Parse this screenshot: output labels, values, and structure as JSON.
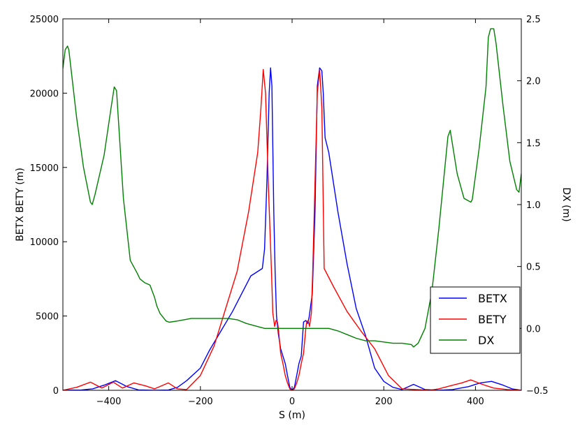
{
  "chart_data": {
    "type": "line",
    "xlabel": "S (m)",
    "ylabel": "BETX BETY (m)",
    "y2label": "DX (m)",
    "xlim": [
      -500,
      500
    ],
    "ylim": [
      0,
      25000
    ],
    "y2lim": [
      -0.5,
      2.5
    ],
    "xticks": [
      -400,
      -200,
      0,
      200,
      400
    ],
    "xtick_labels": [
      "−400",
      "−200",
      "0",
      "200",
      "400"
    ],
    "yticks": [
      0,
      5000,
      10000,
      15000,
      20000,
      25000
    ],
    "ytick_labels": [
      "0",
      "5000",
      "10000",
      "15000",
      "20000",
      "25000"
    ],
    "y2ticks": [
      -0.5,
      0.0,
      0.5,
      1.0,
      1.5,
      2.0,
      2.5
    ],
    "y2tick_labels": [
      "−0.5",
      "0.0",
      "0.5",
      "1.0",
      "1.5",
      "2.0",
      "2.5"
    ],
    "grid": false,
    "legend_position": "lower-right",
    "series": [
      {
        "name": "BETX",
        "axis": "left",
        "color": "#0000ff",
        "x": [
          -500,
          -460,
          -435,
          -410,
          -385,
          -360,
          -335,
          -300,
          -270,
          -250,
          -230,
          -200,
          -180,
          -155,
          -130,
          -110,
          -90,
          -65,
          -60,
          -55,
          -50,
          -47,
          -44,
          -40,
          -37,
          -34,
          -30,
          -25,
          -20,
          -15,
          -10,
          -5,
          0,
          5,
          10,
          15,
          20,
          25,
          30,
          34,
          37,
          44,
          50,
          55,
          60,
          65,
          68,
          72,
          80,
          100,
          120,
          140,
          160,
          180,
          200,
          220,
          240,
          265,
          290,
          320,
          350,
          385,
          410,
          435,
          460,
          480,
          500
        ],
        "y": [
          0,
          20,
          100,
          350,
          650,
          250,
          30,
          0,
          20,
          200,
          650,
          1500,
          2700,
          4000,
          5300,
          6500,
          7700,
          8200,
          9500,
          14000,
          20000,
          21700,
          20500,
          12000,
          8000,
          5000,
          3800,
          2800,
          2300,
          1800,
          1000,
          200,
          0,
          200,
          1000,
          1800,
          2300,
          4600,
          4700,
          4500,
          4900,
          6500,
          12000,
          20500,
          21700,
          21500,
          20000,
          17000,
          16000,
          12000,
          8500,
          5500,
          3700,
          1500,
          600,
          200,
          50,
          400,
          50,
          0,
          50,
          250,
          500,
          600,
          350,
          100,
          0
        ]
      },
      {
        "name": "BETY",
        "axis": "left",
        "color": "#ff0000",
        "x": [
          -500,
          -470,
          -440,
          -415,
          -390,
          -370,
          -345,
          -320,
          -300,
          -270,
          -250,
          -230,
          -200,
          -170,
          -145,
          -120,
          -95,
          -75,
          -68,
          -63,
          -58,
          -52,
          -45,
          -42,
          -38,
          -35,
          -32,
          -30,
          -25,
          -20,
          -15,
          -10,
          -5,
          0,
          5,
          10,
          15,
          20,
          25,
          30,
          32,
          35,
          38,
          42,
          45,
          50,
          55,
          60,
          65,
          70,
          90,
          120,
          150,
          180,
          210,
          240,
          270,
          300,
          320,
          345,
          370,
          390,
          415,
          440,
          470,
          500
        ],
        "y": [
          0,
          200,
          550,
          150,
          550,
          150,
          500,
          300,
          100,
          500,
          100,
          50,
          1000,
          3000,
          5500,
          8000,
          12000,
          16000,
          19000,
          21600,
          20000,
          14000,
          8000,
          5200,
          4300,
          4700,
          4600,
          4200,
          2500,
          1800,
          1000,
          500,
          100,
          0,
          100,
          500,
          1000,
          1800,
          2500,
          4200,
          4600,
          4700,
          4300,
          5200,
          8000,
          14000,
          20000,
          21600,
          19000,
          8200,
          7000,
          5300,
          4000,
          2800,
          1000,
          100,
          50,
          0,
          100,
          300,
          500,
          700,
          400,
          150,
          50,
          0
        ]
      },
      {
        "name": "DX",
        "axis": "right",
        "color": "#008000",
        "x": [
          -500,
          -495,
          -490,
          -487,
          -470,
          -455,
          -440,
          -436,
          -430,
          -410,
          -395,
          -388,
          -383,
          -368,
          -353,
          -337,
          -332,
          -322,
          -310,
          -300,
          -295,
          -288,
          -275,
          -268,
          -250,
          -220,
          -190,
          -160,
          -140,
          -120,
          -100,
          -80,
          -60,
          0,
          60,
          80,
          100,
          120,
          140,
          160,
          180,
          200,
          220,
          240,
          260,
          265,
          275,
          290,
          305,
          320,
          340,
          345,
          360,
          375,
          390,
          393,
          408,
          423,
          428,
          433,
          440,
          445,
          460,
          475,
          490,
          495,
          500
        ],
        "y": [
          2.1,
          2.25,
          2.28,
          2.25,
          1.7,
          1.3,
          1.02,
          1.0,
          1.08,
          1.4,
          1.78,
          1.95,
          1.92,
          1.05,
          0.55,
          0.44,
          0.4,
          0.37,
          0.35,
          0.25,
          0.18,
          0.12,
          0.06,
          0.05,
          0.06,
          0.08,
          0.08,
          0.08,
          0.08,
          0.07,
          0.04,
          0.02,
          0.0,
          0.0,
          0.0,
          0.0,
          -0.02,
          -0.05,
          -0.08,
          -0.1,
          -0.1,
          -0.11,
          -0.12,
          -0.12,
          -0.13,
          -0.15,
          -0.12,
          0.0,
          0.3,
          0.8,
          1.55,
          1.6,
          1.25,
          1.05,
          1.02,
          1.04,
          1.45,
          1.95,
          2.35,
          2.42,
          2.42,
          2.3,
          1.8,
          1.35,
          1.12,
          1.1,
          1.25
        ]
      }
    ]
  }
}
